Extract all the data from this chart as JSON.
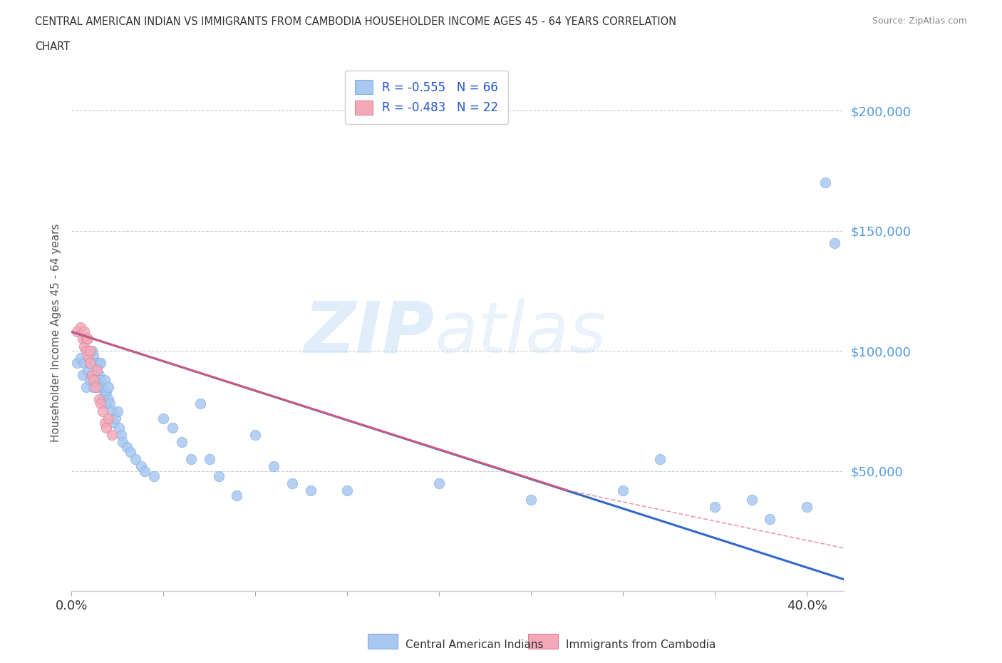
{
  "title_line1": "CENTRAL AMERICAN INDIAN VS IMMIGRANTS FROM CAMBODIA HOUSEHOLDER INCOME AGES 45 - 64 YEARS CORRELATION",
  "title_line2": "CHART",
  "source_text": "Source: ZipAtlas.com",
  "ylabel": "Householder Income Ages 45 - 64 years",
  "xlim": [
    0.0,
    0.42
  ],
  "ylim": [
    0,
    215000
  ],
  "yticks": [
    0,
    50000,
    100000,
    150000,
    200000
  ],
  "ytick_labels": [
    "",
    "$50,000",
    "$100,000",
    "$150,000",
    "$200,000"
  ],
  "xticks": [
    0.0,
    0.05,
    0.1,
    0.15,
    0.2,
    0.25,
    0.3,
    0.35,
    0.4
  ],
  "legend_entries": [
    {
      "label": "R = -0.555   N = 66",
      "color": "#a8c8f0"
    },
    {
      "label": "R = -0.483   N = 22",
      "color": "#f5a8b8"
    }
  ],
  "legend_label1": "Central American Indians",
  "legend_label2": "Immigrants from Cambodia",
  "blue_scatter_x": [
    0.003,
    0.005,
    0.006,
    0.007,
    0.008,
    0.009,
    0.01,
    0.01,
    0.011,
    0.011,
    0.012,
    0.012,
    0.013,
    0.013,
    0.014,
    0.014,
    0.015,
    0.015,
    0.015,
    0.016,
    0.016,
    0.017,
    0.017,
    0.018,
    0.018,
    0.019,
    0.019,
    0.02,
    0.02,
    0.021,
    0.022,
    0.023,
    0.024,
    0.025,
    0.026,
    0.027,
    0.028,
    0.03,
    0.032,
    0.035,
    0.038,
    0.04,
    0.045,
    0.05,
    0.055,
    0.06,
    0.065,
    0.07,
    0.075,
    0.08,
    0.09,
    0.1,
    0.11,
    0.12,
    0.13,
    0.15,
    0.2,
    0.25,
    0.3,
    0.32,
    0.35,
    0.37,
    0.38,
    0.4,
    0.41,
    0.415
  ],
  "blue_scatter_y": [
    95000,
    97000,
    90000,
    95000,
    85000,
    92000,
    88000,
    95000,
    100000,
    90000,
    98000,
    85000,
    95000,
    88000,
    85000,
    92000,
    95000,
    90000,
    85000,
    88000,
    95000,
    85000,
    80000,
    88000,
    82000,
    78000,
    83000,
    80000,
    85000,
    78000,
    75000,
    70000,
    72000,
    75000,
    68000,
    65000,
    62000,
    60000,
    58000,
    55000,
    52000,
    50000,
    48000,
    72000,
    68000,
    62000,
    55000,
    78000,
    55000,
    48000,
    40000,
    65000,
    52000,
    45000,
    42000,
    42000,
    45000,
    38000,
    42000,
    55000,
    35000,
    38000,
    30000,
    35000,
    170000,
    145000
  ],
  "pink_scatter_x": [
    0.003,
    0.005,
    0.006,
    0.007,
    0.007,
    0.008,
    0.008,
    0.009,
    0.009,
    0.01,
    0.01,
    0.011,
    0.012,
    0.013,
    0.014,
    0.015,
    0.016,
    0.017,
    0.018,
    0.019,
    0.02,
    0.022
  ],
  "pink_scatter_y": [
    108000,
    110000,
    105000,
    108000,
    102000,
    105000,
    100000,
    98000,
    105000,
    100000,
    95000,
    90000,
    88000,
    85000,
    92000,
    80000,
    78000,
    75000,
    70000,
    68000,
    72000,
    65000
  ],
  "blue_line_x": [
    0.0,
    0.42
  ],
  "blue_line_y": [
    108000,
    5000
  ],
  "pink_solid_line_x": [
    0.0,
    0.27
  ],
  "pink_solid_line_y": [
    108000,
    42000
  ],
  "pink_dash_line_x": [
    0.27,
    0.42
  ],
  "pink_dash_line_y": [
    42000,
    18000
  ],
  "watermark_zip": "ZIP",
  "watermark_atlas": "atlas",
  "scatter_color_blue": "#a8c8f0",
  "scatter_color_pink": "#f5a8b8",
  "line_color_blue": "#3366cc",
  "line_color_pink": "#dd5577",
  "grid_color": "#cccccc",
  "bg_color": "#ffffff",
  "title_color": "#333333",
  "tick_color_y": "#5599dd",
  "tick_color_x": "#333333"
}
